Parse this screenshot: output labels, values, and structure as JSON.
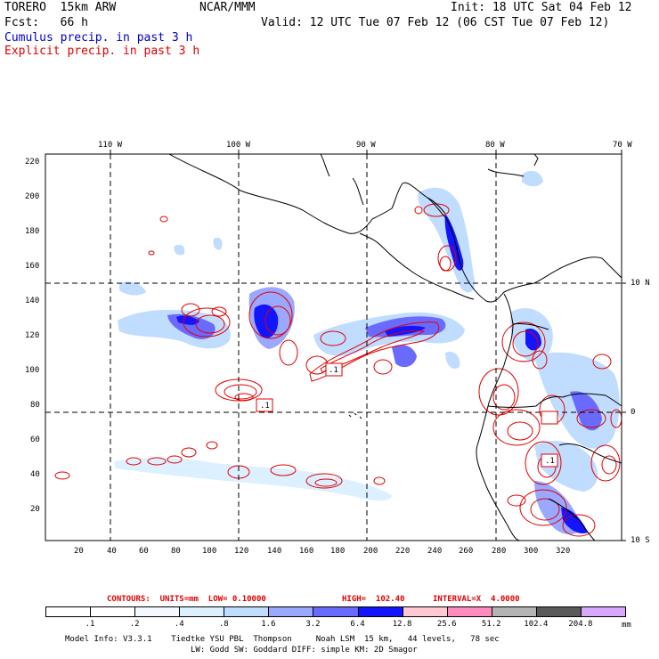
{
  "header": {
    "model": "TORERO  15km ARW",
    "org": "NCAR/MMM",
    "init": "Init: 18 UTC Sat 04 Feb 12",
    "fcst": "Fcst:   66 h",
    "valid": "Valid: 12 UTC Tue 07 Feb 12 (06 CST Tue 07 Feb 12)",
    "legend_cumulus": "Cumulus precip. in past 3 h",
    "legend_explicit": "Explicit precip. in past 3 h"
  },
  "map": {
    "lon_labels": [
      "110 W",
      "100 W",
      "90 W",
      "80 W",
      "70 W"
    ],
    "lat_labels": [
      "10 N",
      "0",
      "10 S"
    ],
    "y_ticks": [
      "220",
      "200",
      "180",
      "160",
      "140",
      "120",
      "100",
      "80",
      "60",
      "40",
      "20"
    ],
    "x_ticks": [
      "20",
      "40",
      "60",
      "80",
      "100",
      "120",
      "140",
      "160",
      "180",
      "200",
      "220",
      "240",
      "260",
      "280",
      "300",
      "320"
    ],
    "min_boxes": [
      ".1",
      ".1",
      ".1"
    ],
    "colors": {
      "cumulus": "#1414ff",
      "explicit": "#e00000",
      "land": "#000000"
    }
  },
  "contour_info": {
    "label": "CONTOURS:  UNITS=mm  LOW= 0.10000",
    "high": "HIGH=  102.40",
    "interval": "INTERVAL=X  4.0000"
  },
  "colorbar": {
    "colors": [
      "#ffffff",
      "#ffffff",
      "#f4f8ff",
      "#dcf0ff",
      "#c0dcff",
      "#9aa8ff",
      "#6a6aff",
      "#1414ff",
      "#ffc8d2",
      "#ff8cbe",
      "#b4b4b4",
      "#5a5a5a",
      "#d8a8ff"
    ],
    "labels": [
      ".1",
      ".2",
      ".4",
      ".8",
      "1.6",
      "3.2",
      "6.4",
      "12.8",
      "25.6",
      "51.2",
      "102.4",
      "204.8"
    ],
    "unit": "mm"
  },
  "footer": {
    "line1": "Model Info: V3.3.1    Tiedtke YSU PBL  Thompson     Noah LSM  15 km,   44 levels,   78 sec",
    "line2": "LW: Godd SW: Goddard DIFF: simple KM: 2D Smagor"
  }
}
